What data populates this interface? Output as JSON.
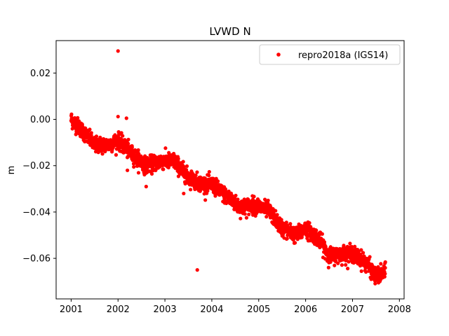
{
  "chart_data": {
    "type": "scatter",
    "title": "LVWD N",
    "xlabel": "",
    "ylabel": "m",
    "xlim": [
      2000.68,
      2008.1
    ],
    "ylim": [
      -0.0775,
      0.034
    ],
    "x_ticks": [
      2001,
      2002,
      2003,
      2004,
      2005,
      2006,
      2007,
      2008
    ],
    "x_tick_labels": [
      "2001",
      "2002",
      "2003",
      "2004",
      "2005",
      "2006",
      "2007",
      "2008"
    ],
    "y_ticks": [
      0.02,
      0.0,
      -0.02,
      -0.04,
      -0.06
    ],
    "y_tick_labels": [
      "0.02",
      "0.00",
      "−0.02",
      "−0.04",
      "−0.06"
    ],
    "grid": false,
    "legend_position": "top-right",
    "series": [
      {
        "name": "repro2018a (IGS14)",
        "color": "#ff0000",
        "marker": "circle",
        "trend_points": [
          {
            "x": 2001.0,
            "y": 0.0
          },
          {
            "x": 2001.2,
            "y": -0.004
          },
          {
            "x": 2001.5,
            "y": -0.011
          },
          {
            "x": 2001.8,
            "y": -0.011
          },
          {
            "x": 2002.0,
            "y": -0.009
          },
          {
            "x": 2002.3,
            "y": -0.015
          },
          {
            "x": 2002.6,
            "y": -0.02
          },
          {
            "x": 2002.9,
            "y": -0.018
          },
          {
            "x": 2003.2,
            "y": -0.018
          },
          {
            "x": 2003.5,
            "y": -0.025
          },
          {
            "x": 2003.8,
            "y": -0.028
          },
          {
            "x": 2004.0,
            "y": -0.028
          },
          {
            "x": 2004.3,
            "y": -0.033
          },
          {
            "x": 2004.6,
            "y": -0.038
          },
          {
            "x": 2004.9,
            "y": -0.037
          },
          {
            "x": 2005.2,
            "y": -0.039
          },
          {
            "x": 2005.5,
            "y": -0.047
          },
          {
            "x": 2005.8,
            "y": -0.05
          },
          {
            "x": 2006.0,
            "y": -0.047
          },
          {
            "x": 2006.3,
            "y": -0.052
          },
          {
            "x": 2006.5,
            "y": -0.059
          },
          {
            "x": 2006.8,
            "y": -0.058
          },
          {
            "x": 2007.0,
            "y": -0.058
          },
          {
            "x": 2007.3,
            "y": -0.062
          },
          {
            "x": 2007.5,
            "y": -0.068
          },
          {
            "x": 2007.7,
            "y": -0.066
          }
        ],
        "noise_sd": 0.0017,
        "outliers": [
          {
            "x": 2002.0,
            "y": 0.0295
          },
          {
            "x": 2003.69,
            "y": -0.065
          },
          {
            "x": 2002.0,
            "y": 0.0012
          },
          {
            "x": 2002.18,
            "y": 0.0005
          },
          {
            "x": 2002.2,
            "y": -0.022
          },
          {
            "x": 2002.6,
            "y": -0.029
          },
          {
            "x": 2003.4,
            "y": -0.032
          }
        ]
      }
    ]
  }
}
